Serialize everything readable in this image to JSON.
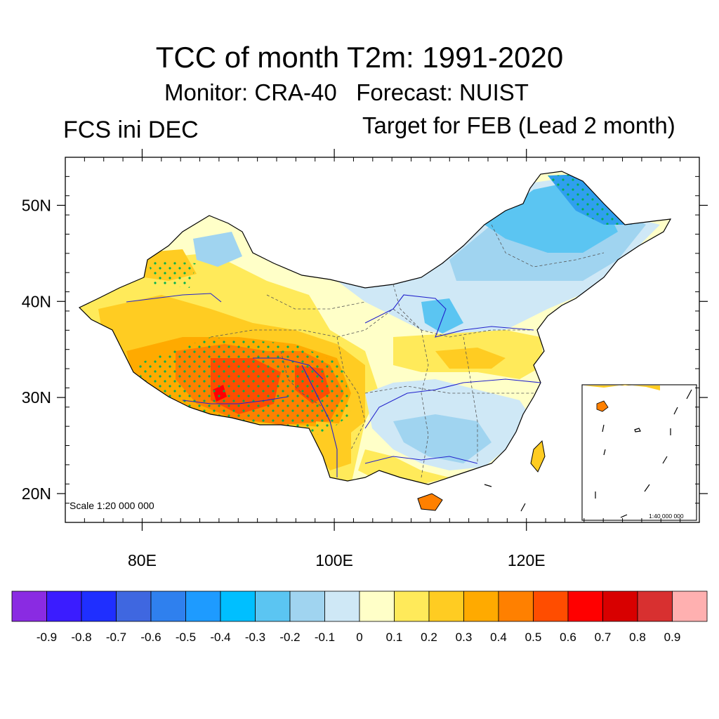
{
  "title": "TCC of month T2m: 1991-2020",
  "subtitle": "Monitor: CRA-40   Forecast: NUIST",
  "left_label": "FCS ini DEC",
  "right_label": "Target for FEB (Lead 2 month)",
  "scale_main": "Scale 1:20 000 000",
  "scale_inset": "1:40 000 000",
  "map": {
    "lon_range": [
      72,
      138
    ],
    "lat_range": [
      17,
      55
    ],
    "lat_ticks": [
      {
        "value": 20,
        "label": "20N"
      },
      {
        "value": 30,
        "label": "30N"
      },
      {
        "value": 40,
        "label": "40N"
      },
      {
        "value": 50,
        "label": "50N"
      }
    ],
    "lon_ticks": [
      {
        "value": 80,
        "label": "80E"
      },
      {
        "value": 100,
        "label": "100E"
      },
      {
        "value": 120,
        "label": "120E"
      }
    ]
  },
  "colorbar": {
    "colors": [
      "#8a2be2",
      "#3b1cff",
      "#1f2fff",
      "#3f67e0",
      "#2f80ee",
      "#1e9bff",
      "#00bfff",
      "#5bc5f2",
      "#a0d4f0",
      "#cfe8f6",
      "#ffffc8",
      "#ffea5a",
      "#ffcc22",
      "#ffaa00",
      "#ff8000",
      "#ff4d00",
      "#ff0000",
      "#d80000",
      "#d83030",
      "#ffb0b0"
    ],
    "labels": [
      "-0.9",
      "-0.8",
      "-0.7",
      "-0.6",
      "-0.5",
      "-0.4",
      "-0.3",
      "-0.2",
      "-0.1",
      "0",
      "0.1",
      "0.2",
      "0.3",
      "0.4",
      "0.5",
      "0.6",
      "0.7",
      "0.8",
      "0.9"
    ]
  }
}
